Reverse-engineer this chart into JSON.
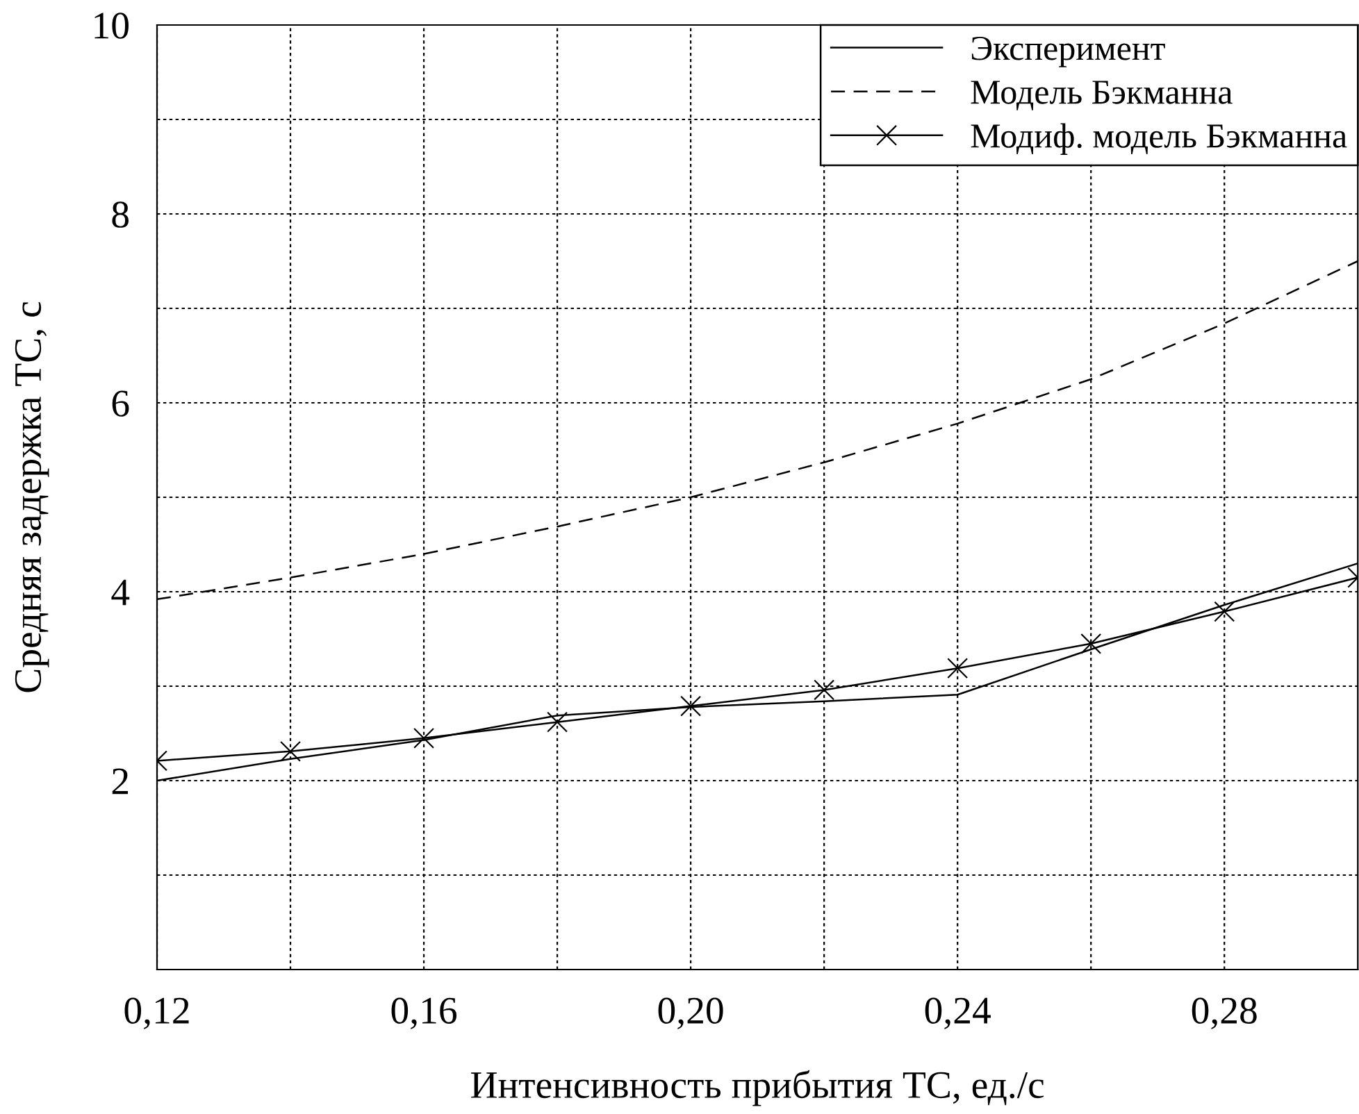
{
  "chart_data": {
    "type": "line",
    "xlabel": "Интенсивность прибытия ТС, ед./с",
    "ylabel": "Средняя задержка ТС, с",
    "x": [
      0.12,
      0.14,
      0.16,
      0.18,
      0.2,
      0.22,
      0.24,
      0.26,
      0.28,
      0.3
    ],
    "series": [
      {
        "name": "Эксперимент",
        "color": "#000000",
        "line_style": "solid",
        "marker": "none",
        "values": [
          2.0,
          2.23,
          2.43,
          2.69,
          2.78,
          2.84,
          2.91,
          3.39,
          3.86,
          4.3
        ]
      },
      {
        "name": "Модель Бэкманна",
        "color": "#000000",
        "line_style": "dashed",
        "marker": "none",
        "values": [
          3.92,
          4.15,
          4.4,
          4.69,
          5.0,
          5.37,
          5.78,
          6.25,
          6.84,
          7.5
        ]
      },
      {
        "name": "Модиф. модель Бэкманна",
        "color": "#000000",
        "line_style": "solid",
        "marker": "cross",
        "values": [
          2.21,
          2.31,
          2.45,
          2.62,
          2.79,
          2.96,
          3.19,
          3.45,
          3.79,
          4.15
        ]
      }
    ],
    "xlim": [
      0.12,
      0.3
    ],
    "xticks": [
      {
        "value": 0.12,
        "label": "0,12"
      },
      {
        "value": 0.14,
        "label": null
      },
      {
        "value": 0.16,
        "label": "0,16"
      },
      {
        "value": 0.18,
        "label": null
      },
      {
        "value": 0.2,
        "label": "0,20"
      },
      {
        "value": 0.22,
        "label": null
      },
      {
        "value": 0.24,
        "label": "0,24"
      },
      {
        "value": 0.26,
        "label": null
      },
      {
        "value": 0.28,
        "label": "0,28"
      }
    ],
    "ylim": [
      0,
      10
    ],
    "yticks": [
      {
        "value": 1,
        "label": null
      },
      2,
      {
        "value": 3,
        "label": null
      },
      4,
      {
        "value": 5,
        "label": null
      },
      6,
      {
        "value": 7,
        "label": null
      },
      8,
      {
        "value": 9,
        "label": null
      },
      10
    ],
    "grid": true,
    "legend": "top right"
  }
}
